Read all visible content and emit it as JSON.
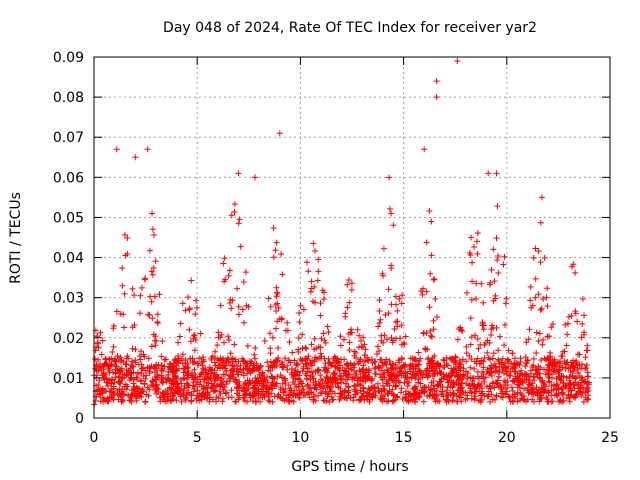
{
  "chart_data": {
    "type": "scatter",
    "title": "Day 048 of 2024, Rate Of TEC Index for receiver yar2",
    "xlabel": "GPS time / hours",
    "ylabel": "ROTI / TECUs",
    "xlim": [
      0,
      25
    ],
    "ylim": [
      0,
      0.09
    ],
    "xticks": [
      0,
      5,
      10,
      15,
      20,
      25
    ],
    "xtick_labels": [
      "0",
      "5",
      "10",
      "15",
      "20",
      "25"
    ],
    "yticks": [
      0,
      0.01,
      0.02,
      0.03,
      0.04,
      0.05,
      0.06,
      0.07,
      0.08,
      0.09
    ],
    "ytick_labels": [
      "0",
      "0.01",
      "0.02",
      "0.03",
      "0.04",
      "0.05",
      "0.06",
      "0.07",
      "0.08",
      "0.09"
    ],
    "grid": true,
    "marker": "+",
    "series_color": "#ff0000",
    "data_range_hours": [
      0,
      24
    ],
    "series": [
      {
        "name": "ROTI",
        "summary_note": "dense scatter; typical 0.005-0.03, bursts to ~0.06",
        "notable_points": [
          {
            "x": 1.1,
            "y": 0.067
          },
          {
            "x": 2.6,
            "y": 0.067
          },
          {
            "x": 2.0,
            "y": 0.065
          },
          {
            "x": 9.0,
            "y": 0.071
          },
          {
            "x": 16.0,
            "y": 0.067
          },
          {
            "x": 16.6,
            "y": 0.084
          },
          {
            "x": 16.6,
            "y": 0.08
          },
          {
            "x": 17.6,
            "y": 0.089
          },
          {
            "x": 19.1,
            "y": 0.061
          },
          {
            "x": 19.5,
            "y": 0.061
          },
          {
            "x": 14.3,
            "y": 0.06
          },
          {
            "x": 21.7,
            "y": 0.055
          },
          {
            "x": 7.0,
            "y": 0.061
          },
          {
            "x": 7.8,
            "y": 0.06
          }
        ]
      }
    ]
  }
}
